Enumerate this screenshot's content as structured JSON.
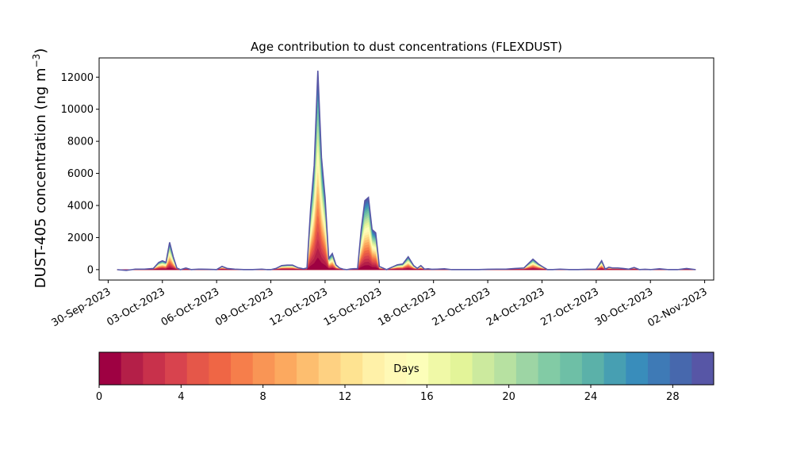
{
  "chart_data": {
    "type": "area",
    "title": "Age contribution to dust concentrations (FLEXDUST)",
    "ylabel": "DUST-405 concentration (ng m",
    "ylabel_sup": "−3",
    "ylabel_close": ")",
    "ylim": [
      -650,
      13200
    ],
    "yticks": [
      0,
      2000,
      4000,
      6000,
      8000,
      10000,
      12000
    ],
    "xlim_days": [
      -0.5,
      33.5
    ],
    "xtick_labels": [
      "30-Sep-2023",
      "03-Oct-2023",
      "06-Oct-2023",
      "09-Oct-2023",
      "12-Oct-2023",
      "15-Oct-2023",
      "18-Oct-2023",
      "21-Oct-2023",
      "24-Oct-2023",
      "27-Oct-2023",
      "30-Oct-2023",
      "02-Nov-2023"
    ],
    "xtick_days": [
      0,
      3,
      6,
      9,
      12,
      15,
      18,
      21,
      24,
      27,
      30,
      33
    ],
    "series_x_days": [
      0.5,
      1.0,
      1.5,
      2.0,
      2.5,
      2.8,
      3.0,
      3.2,
      3.4,
      3.6,
      3.8,
      4.0,
      4.3,
      4.6,
      5.0,
      5.5,
      6.0,
      6.3,
      6.6,
      7.0,
      7.5,
      8.0,
      8.5,
      8.8,
      9.0,
      9.3,
      9.6,
      9.9,
      10.2,
      10.5,
      10.8,
      11.0,
      11.2,
      11.4,
      11.6,
      11.8,
      12.0,
      12.2,
      12.4,
      12.6,
      12.8,
      13.0,
      13.2,
      13.4,
      13.6,
      13.8,
      14.0,
      14.2,
      14.4,
      14.6,
      14.8,
      15.0,
      15.2,
      15.4,
      15.6,
      15.8,
      16.0,
      16.3,
      16.6,
      16.9,
      17.1,
      17.3,
      17.5,
      17.7,
      17.9,
      18.2,
      18.6,
      19.0,
      19.5,
      20.0,
      20.5,
      21.0,
      21.5,
      22.0,
      22.5,
      23.0,
      23.5,
      23.8,
      24.0,
      24.3,
      24.6,
      25.0,
      25.5,
      26.0,
      26.5,
      27.0,
      27.3,
      27.5,
      27.7,
      27.9,
      28.2,
      28.5,
      28.8,
      29.1,
      29.4,
      29.7,
      30.0,
      30.5,
      31.0,
      31.5,
      32.0,
      32.5
    ],
    "series_total": [
      0,
      -50,
      30,
      30,
      70,
      450,
      550,
      450,
      1700,
      800,
      100,
      0,
      100,
      0,
      30,
      20,
      0,
      200,
      70,
      30,
      0,
      0,
      30,
      0,
      0,
      80,
      250,
      280,
      280,
      120,
      50,
      100,
      3800,
      6500,
      12400,
      7000,
      4500,
      700,
      1000,
      300,
      100,
      30,
      0,
      40,
      60,
      60,
      2500,
      4300,
      4500,
      2500,
      2300,
      200,
      100,
      0,
      100,
      200,
      300,
      350,
      800,
      250,
      80,
      250,
      30,
      50,
      20,
      30,
      50,
      0,
      0,
      0,
      0,
      20,
      30,
      30,
      70,
      100,
      650,
      350,
      200,
      0,
      0,
      30,
      0,
      0,
      20,
      30,
      550,
      30,
      150,
      100,
      100,
      70,
      30,
      130,
      0,
      20,
      0,
      50,
      0,
      0,
      70,
      0
    ],
    "colorbar": {
      "label": "Days",
      "min": 0,
      "max": 30,
      "ticks": [
        0,
        4,
        8,
        12,
        16,
        20,
        24,
        28
      ],
      "colormap": "Spectral",
      "colors": [
        "#9e0142",
        "#b41f48",
        "#c8314b",
        "#d8434e",
        "#e55749",
        "#ef6645",
        "#f67e4b",
        "#f99555",
        "#fca95f",
        "#fdbe6f",
        "#fed182",
        "#fee391",
        "#fff1a8",
        "#fff9b6",
        "#fcfeb9",
        "#f0f9a7",
        "#e3f499",
        "#ccea9e",
        "#b7e1a1",
        "#9dd5a4",
        "#82cba5",
        "#6ebfa6",
        "#5bb1a9",
        "#479fb2",
        "#398dbb",
        "#3e7ab6",
        "#4768ad",
        "#5756a6"
      ]
    }
  }
}
